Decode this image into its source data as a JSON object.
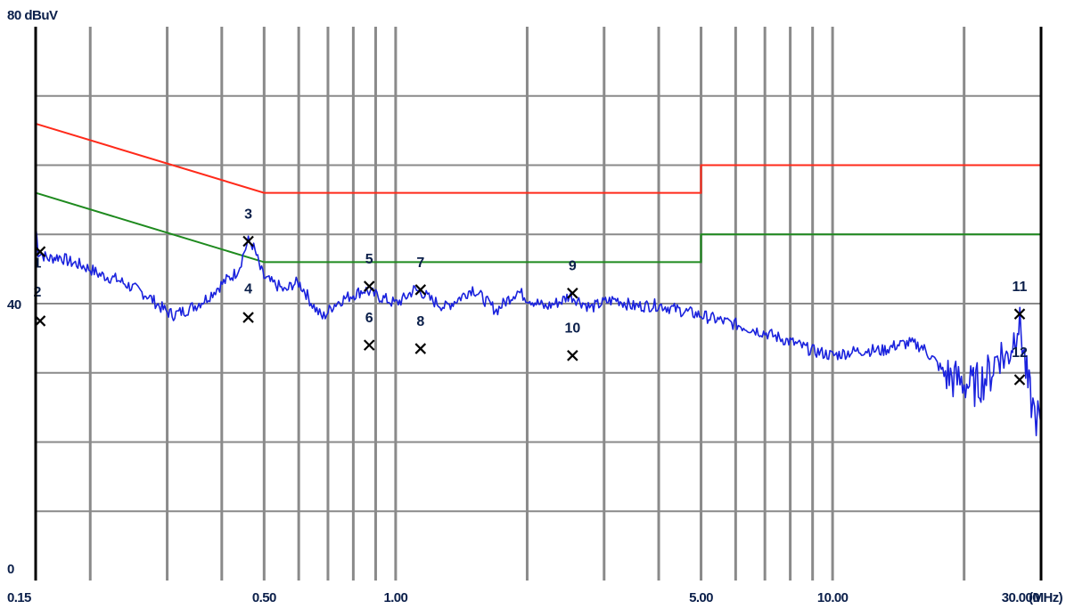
{
  "chart_data": {
    "type": "line",
    "x_scale": "log",
    "x_unit": "(MHz)",
    "y_unit": "dBuV",
    "xlim": [
      0.15,
      30.0
    ],
    "ylim": [
      0,
      80
    ],
    "grid": true,
    "y_ticks": [
      {
        "value": 0,
        "label": "0"
      },
      {
        "value": 40,
        "label": "40"
      },
      {
        "value": 80,
        "label": "80 dBuV"
      }
    ],
    "x_ticks": [
      {
        "value": 0.15,
        "label": "0.15"
      },
      {
        "value": 0.5,
        "label": "0.50"
      },
      {
        "value": 1.0,
        "label": "1.00"
      },
      {
        "value": 5.0,
        "label": "5.00"
      },
      {
        "value": 10.0,
        "label": "10.00"
      },
      {
        "value": 30.0,
        "label": "30.000"
      }
    ],
    "limit_lines": [
      {
        "color": "#ff2a1a",
        "points": [
          [
            0.15,
            66
          ],
          [
            0.5,
            56
          ],
          [
            5.0,
            56
          ],
          [
            5.0,
            60
          ],
          [
            30.0,
            60
          ]
        ]
      },
      {
        "color": "#1e8a1e",
        "points": [
          [
            0.15,
            56
          ],
          [
            0.5,
            46
          ],
          [
            5.0,
            46
          ],
          [
            5.0,
            50
          ],
          [
            30.0,
            50
          ]
        ]
      }
    ],
    "series": [
      {
        "color": "#1a22dd",
        "points": [
          [
            0.15,
            51.5
          ],
          [
            0.152,
            47.5
          ],
          [
            0.16,
            46.5
          ],
          [
            0.17,
            46.8
          ],
          [
            0.18,
            46.0
          ],
          [
            0.19,
            45.6
          ],
          [
            0.2,
            45.0
          ],
          [
            0.21,
            44.2
          ],
          [
            0.23,
            43.5
          ],
          [
            0.25,
            42.3
          ],
          [
            0.27,
            41.2
          ],
          [
            0.29,
            39.5
          ],
          [
            0.3,
            38.8
          ],
          [
            0.31,
            38.4
          ],
          [
            0.33,
            39.0
          ],
          [
            0.35,
            39.8
          ],
          [
            0.37,
            40.8
          ],
          [
            0.39,
            42.2
          ],
          [
            0.41,
            43.4
          ],
          [
            0.43,
            44.4
          ],
          [
            0.44,
            45.5
          ],
          [
            0.45,
            47.5
          ],
          [
            0.46,
            49.0
          ],
          [
            0.47,
            48.5
          ],
          [
            0.48,
            47.0
          ],
          [
            0.49,
            45.0
          ],
          [
            0.5,
            43.8
          ],
          [
            0.52,
            43.0
          ],
          [
            0.54,
            42.5
          ],
          [
            0.56,
            41.7
          ],
          [
            0.58,
            42.8
          ],
          [
            0.6,
            43.0
          ],
          [
            0.62,
            41.8
          ],
          [
            0.64,
            40.2
          ],
          [
            0.66,
            39.0
          ],
          [
            0.68,
            38.0
          ],
          [
            0.7,
            38.8
          ],
          [
            0.72,
            39.8
          ],
          [
            0.75,
            40.5
          ],
          [
            0.8,
            41.3
          ],
          [
            0.85,
            42.0
          ],
          [
            0.9,
            41.2
          ],
          [
            0.95,
            40.6
          ],
          [
            1.0,
            40.0
          ],
          [
            1.05,
            40.8
          ],
          [
            1.1,
            42.0
          ],
          [
            1.15,
            41.6
          ],
          [
            1.2,
            40.6
          ],
          [
            1.3,
            39.5
          ],
          [
            1.4,
            40.8
          ],
          [
            1.5,
            42.2
          ],
          [
            1.6,
            40.5
          ],
          [
            1.7,
            39.0
          ],
          [
            1.8,
            40.5
          ],
          [
            1.9,
            41.8
          ],
          [
            2.0,
            40.8
          ],
          [
            2.2,
            39.5
          ],
          [
            2.4,
            40.4
          ],
          [
            2.5,
            41.2
          ],
          [
            2.7,
            40.0
          ],
          [
            2.8,
            39.4
          ],
          [
            3.0,
            40.2
          ],
          [
            3.2,
            40.6
          ],
          [
            3.5,
            39.6
          ],
          [
            4.0,
            39.8
          ],
          [
            4.5,
            39.0
          ],
          [
            5.0,
            38.3
          ],
          [
            5.5,
            37.6
          ],
          [
            6.0,
            37.0
          ],
          [
            7.0,
            35.8
          ],
          [
            8.0,
            34.5
          ],
          [
            9.0,
            33.2
          ],
          [
            10.0,
            32.5
          ],
          [
            11.0,
            33.0
          ],
          [
            12.0,
            33.3
          ],
          [
            13.0,
            33.2
          ],
          [
            14.0,
            34.0
          ],
          [
            15.0,
            34.3
          ],
          [
            16.0,
            33.8
          ],
          [
            17.0,
            32.0
          ],
          [
            18.0,
            30.0
          ],
          [
            19.0,
            29.0
          ],
          [
            20.0,
            28.6
          ],
          [
            21.0,
            28.0
          ],
          [
            22.0,
            29.0
          ],
          [
            23.0,
            30.0
          ],
          [
            24.0,
            33.0
          ],
          [
            25.0,
            32.0
          ],
          [
            26.0,
            35.0
          ],
          [
            26.5,
            37.5
          ],
          [
            27.0,
            36.0
          ],
          [
            27.5,
            32.0
          ],
          [
            28.0,
            28.0
          ],
          [
            28.5,
            26.0
          ],
          [
            29.0,
            24.0
          ],
          [
            29.5,
            23.5
          ],
          [
            30.0,
            22.5
          ]
        ]
      }
    ],
    "markers": [
      {
        "label": "1",
        "x": 0.15,
        "y": 47.5,
        "label_x": 0.15,
        "label_y": 45.2
      },
      {
        "label": "2",
        "x": 0.15,
        "y": 37.5,
        "label_x": 0.15,
        "label_y": 41.0
      },
      {
        "label": "3",
        "x": 0.46,
        "y": 49.0,
        "label_x": 0.46,
        "label_y": 52.3
      },
      {
        "label": "4",
        "x": 0.46,
        "y": 38.0,
        "label_x": 0.46,
        "label_y": 41.5
      },
      {
        "label": "5",
        "x": 0.87,
        "y": 42.5,
        "label_x": 0.87,
        "label_y": 45.8
      },
      {
        "label": "6",
        "x": 0.87,
        "y": 34.0,
        "label_x": 0.87,
        "label_y": 37.3
      },
      {
        "label": "7",
        "x": 1.14,
        "y": 42.0,
        "label_x": 1.14,
        "label_y": 45.3
      },
      {
        "label": "8",
        "x": 1.14,
        "y": 33.5,
        "label_x": 1.14,
        "label_y": 36.8
      },
      {
        "label": "9",
        "x": 2.54,
        "y": 41.5,
        "label_x": 2.54,
        "label_y": 44.8
      },
      {
        "label": "10",
        "x": 2.54,
        "y": 32.5,
        "label_x": 2.54,
        "label_y": 35.8
      },
      {
        "label": "11",
        "x": 26.8,
        "y": 38.5,
        "label_x": 26.8,
        "label_y": 41.8
      },
      {
        "label": "12",
        "x": 26.8,
        "y": 29.0,
        "label_x": 26.8,
        "label_y": 32.3
      }
    ]
  }
}
